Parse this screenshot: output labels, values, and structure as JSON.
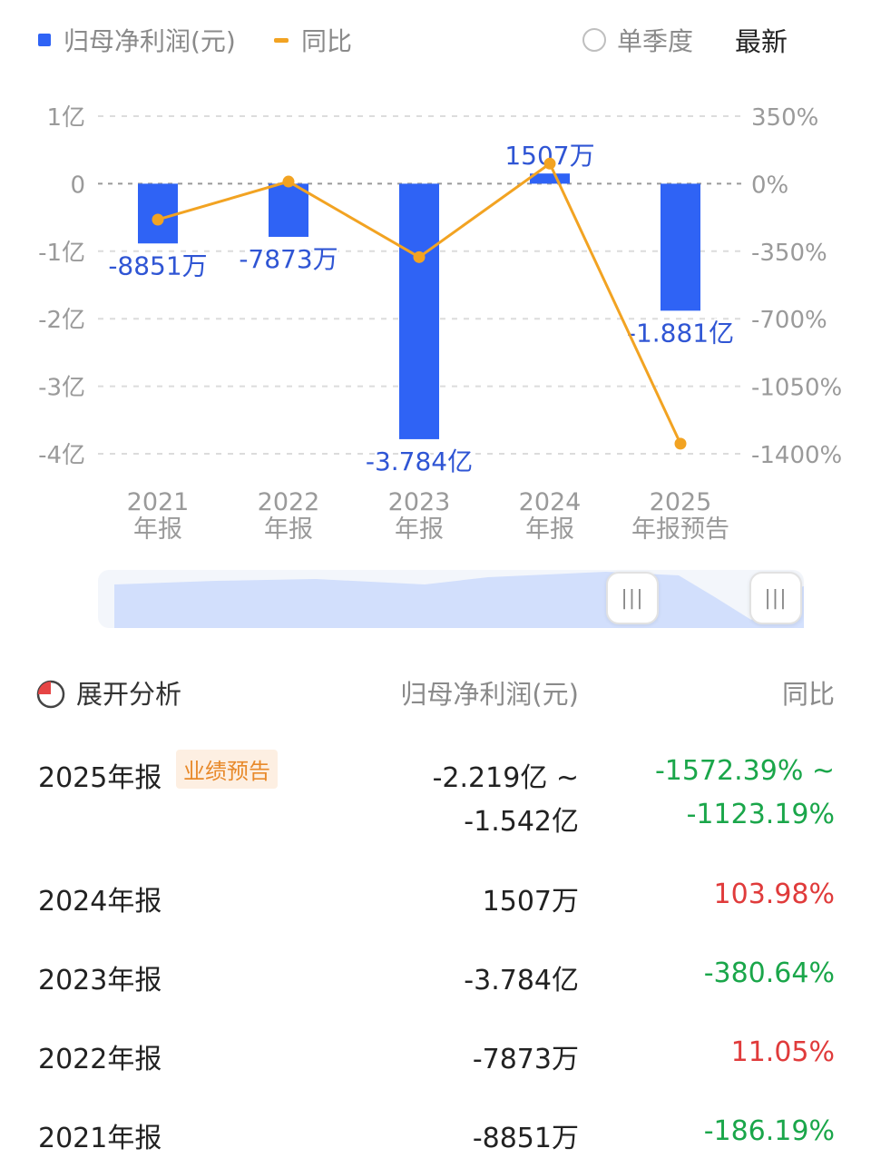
{
  "legend": {
    "series1": "归母净利润(元)",
    "series2": "同比",
    "single_quarter": "单季度",
    "latest": "最新"
  },
  "colors": {
    "bar": "#2f63f5",
    "line": "#f2a322",
    "green": "#1aa64a",
    "red": "#e03b3b"
  },
  "chart_data": {
    "type": "bar",
    "categories": [
      "2021\n年报",
      "2022\n年报",
      "2023\n年报",
      "2024\n年报",
      "2025\n年报预告"
    ],
    "y_left_ticks": [
      "1亿",
      "0",
      "-1亿",
      "-2亿",
      "-3亿",
      "-4亿"
    ],
    "y_right_ticks": [
      "350%",
      "0%",
      "-350%",
      "-700%",
      "-1050%",
      "-1400%"
    ],
    "ylim_left": [
      -40000,
      10000
    ],
    "ylim_right": [
      -1400,
      350
    ],
    "grid": true,
    "series": [
      {
        "name": "归母净利润(元)",
        "type": "bar",
        "values": [
          -8851,
          -7873,
          -37840,
          1507,
          -18810
        ],
        "labels": [
          "-8851万",
          "-7873万",
          "-3.784亿",
          "1507万",
          "-1.881亿"
        ]
      },
      {
        "name": "同比",
        "type": "line",
        "values": [
          -186.19,
          11.05,
          -380.64,
          103.98,
          -1347.79
        ]
      }
    ]
  },
  "table": {
    "expand_label": "展开分析",
    "col_value": "归母净利润(元)",
    "col_yoy": "同比",
    "rows": [
      {
        "period": "2025年报",
        "tag": "业绩预告",
        "value_line1": "-2.219亿 ~",
        "value_line2": "-1.542亿",
        "yoy_line1": "-1572.39% ~",
        "yoy_line2": "-1123.19%",
        "yoy_color": "green"
      },
      {
        "period": "2024年报",
        "value": "1507万",
        "yoy": "103.98%",
        "yoy_color": "red"
      },
      {
        "period": "2023年报",
        "value": "-3.784亿",
        "yoy": "-380.64%",
        "yoy_color": "green"
      },
      {
        "period": "2022年报",
        "value": "-7873万",
        "yoy": "11.05%",
        "yoy_color": "red"
      },
      {
        "period": "2021年报",
        "value": "-8851万",
        "yoy": "-186.19%",
        "yoy_color": "green"
      }
    ]
  }
}
